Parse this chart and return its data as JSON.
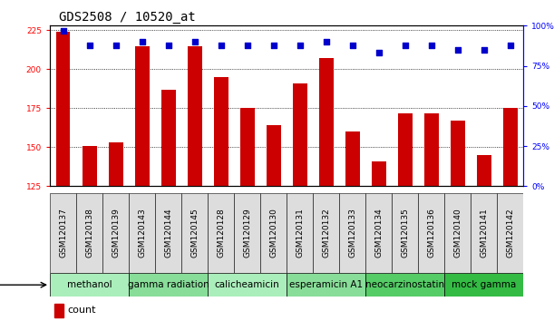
{
  "title": "GDS2508 / 10520_at",
  "samples": [
    "GSM120137",
    "GSM120138",
    "GSM120139",
    "GSM120143",
    "GSM120144",
    "GSM120145",
    "GSM120128",
    "GSM120129",
    "GSM120130",
    "GSM120131",
    "GSM120132",
    "GSM120133",
    "GSM120134",
    "GSM120135",
    "GSM120136",
    "GSM120140",
    "GSM120141",
    "GSM120142"
  ],
  "counts": [
    224,
    151,
    153,
    215,
    187,
    215,
    195,
    175,
    164,
    191,
    207,
    160,
    141,
    172,
    172,
    167,
    145,
    175
  ],
  "percentile_ranks": [
    97,
    88,
    88,
    90,
    88,
    90,
    88,
    88,
    88,
    88,
    90,
    88,
    83,
    88,
    88,
    85,
    85,
    88
  ],
  "agents": [
    {
      "label": "methanol",
      "start": 0,
      "end": 3,
      "color": "#aaeebb"
    },
    {
      "label": "gamma radiation",
      "start": 3,
      "end": 6,
      "color": "#88dd99"
    },
    {
      "label": "calicheamicin",
      "start": 6,
      "end": 9,
      "color": "#aaeebb"
    },
    {
      "label": "esperamicin A1",
      "start": 9,
      "end": 12,
      "color": "#88dd99"
    },
    {
      "label": "neocarzinostatin",
      "start": 12,
      "end": 15,
      "color": "#55cc66"
    },
    {
      "label": "mock gamma",
      "start": 15,
      "end": 18,
      "color": "#33bb44"
    }
  ],
  "ylim_left": [
    125,
    228
  ],
  "ylim_right": [
    0,
    100
  ],
  "yticks_left": [
    125,
    150,
    175,
    200,
    225
  ],
  "yticks_right": [
    0,
    25,
    50,
    75,
    100
  ],
  "bar_color": "#cc0000",
  "dot_color": "#0000cc",
  "bar_width": 0.55,
  "background_color": "#ffffff",
  "plot_bg_color": "#ffffff",
  "tickbox_color": "#dddddd",
  "grid_color": "#000000",
  "title_fontsize": 10,
  "tick_fontsize": 6.5,
  "legend_fontsize": 8,
  "agent_fontsize": 7.5
}
